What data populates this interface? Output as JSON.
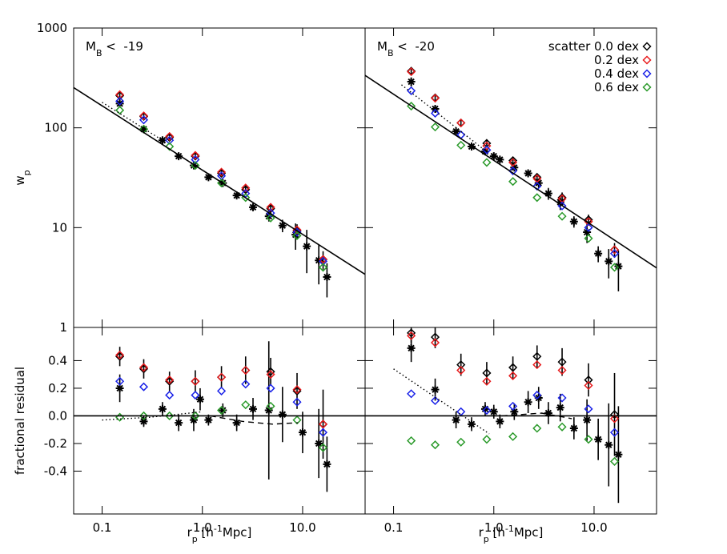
{
  "chart_data": [
    {
      "type": "scatter",
      "xlog": true,
      "ylog": true,
      "xlim": [
        0.052,
        42
      ],
      "ylim": [
        1,
        1000
      ],
      "xticks": [
        0.1,
        {
          "value": 1,
          "label": "1.0"
        },
        {
          "value": 10,
          "label": "10.0"
        }
      ],
      "xticklabels": false,
      "yticks": [
        1,
        10,
        100,
        1000
      ],
      "yticklabels": true,
      "ylabel": [
        {
          "text": "w"
        },
        {
          "text": "p",
          "sub": true
        }
      ],
      "annotation": [
        {
          "text": "M"
        },
        {
          "text": "B",
          "sub": true
        },
        {
          "text": " <  -19"
        }
      ],
      "series": [
        {
          "marker": "star",
          "color": "#000000",
          "x": [
            0.15,
            0.26,
            0.4,
            0.58,
            0.82,
            1.15,
            1.6,
            2.2,
            3.2,
            4.6,
            6.3,
            8.5,
            11,
            14.5,
            17.5
          ],
          "values": [
            175,
            97,
            75,
            52,
            42,
            32,
            28,
            21,
            16,
            13,
            10.5,
            8.5,
            6.5,
            4.7,
            3.2
          ],
          "errors": [
            15,
            6,
            4,
            3,
            2.5,
            2,
            2,
            1.5,
            1.2,
            1.5,
            1.5,
            2.5,
            3,
            2,
            1.2
          ]
        },
        {
          "name": "scatter 0.0 dex",
          "marker": "diamond",
          "color": "#000000",
          "x": [
            0.15,
            0.26,
            0.47,
            0.85,
            1.55,
            2.7,
            4.8,
            8.8,
            16
          ],
          "values": [
            210,
            130,
            80,
            52,
            35,
            24,
            15.5,
            9.3,
            4.8
          ],
          "errors": [
            12,
            8,
            5,
            4,
            3,
            2.5,
            2,
            1.5,
            1
          ]
        },
        {
          "name": "0.2 dex",
          "marker": "diamond",
          "color": "#e8191b",
          "x": [
            0.15,
            0.26,
            0.47,
            0.85,
            1.55,
            2.7,
            4.8,
            8.8,
            16
          ],
          "values": [
            215,
            132,
            82,
            53,
            36,
            25,
            16,
            9.5,
            4.8
          ]
        },
        {
          "name": "0.4 dex",
          "marker": "diamond",
          "color": "#1a22e8",
          "x": [
            0.15,
            0.26,
            0.47,
            0.85,
            1.55,
            2.7,
            4.8,
            8.8,
            16
          ],
          "values": [
            185,
            120,
            75,
            48,
            33,
            22,
            14,
            9,
            4.6
          ]
        },
        {
          "name": "0.6 dex",
          "marker": "diamond",
          "color": "#2a9a2a",
          "x": [
            0.15,
            0.26,
            0.47,
            0.85,
            1.55,
            2.7,
            4.8,
            8.8,
            16
          ],
          "values": [
            150,
            97,
            65,
            42,
            28,
            20,
            12.5,
            8.3,
            4.0
          ]
        },
        {
          "line": "solid",
          "color": "#000000",
          "x": [
            0.052,
            42
          ],
          "values": [
            253,
            3.4
          ]
        },
        {
          "line": "dotted",
          "color": "#000000",
          "x": [
            0.1,
            0.4
          ],
          "values": [
            180,
            75
          ]
        }
      ]
    },
    {
      "type": "scatter",
      "xlog": true,
      "ylog": true,
      "xlim": [
        0.052,
        42
      ],
      "ylim": [
        1,
        1000
      ],
      "xticks": [
        0.1,
        {
          "value": 1,
          "label": "1.0"
        },
        {
          "value": 10,
          "label": "10.0"
        }
      ],
      "xticklabels": false,
      "yticks": [
        1,
        10,
        100,
        1000
      ],
      "yticklabels": false,
      "annotation": [
        {
          "text": "M"
        },
        {
          "text": "B",
          "sub": true
        },
        {
          "text": " <  -20"
        }
      ],
      "legend": "upper right",
      "series": [
        {
          "marker": "star",
          "color": "#000000",
          "x": [
            0.15,
            0.26,
            0.42,
            0.6,
            0.82,
            1.0,
            1.15,
            1.6,
            2.2,
            2.8,
            3.5,
            4.6,
            6.3,
            8.5,
            11,
            14,
            17.5
          ],
          "values": [
            290,
            155,
            92,
            65,
            58,
            52,
            48,
            40,
            35,
            28,
            22,
            18,
            11.5,
            9,
            5.5,
            4.6,
            4.1
          ],
          "errors": [
            30,
            12,
            5,
            3,
            3,
            3,
            3,
            3,
            3,
            3,
            3,
            3,
            1.5,
            2,
            1,
            1.5,
            1.8
          ]
        },
        {
          "name": "scatter 0.0 dex",
          "marker": "diamond",
          "color": "#000000",
          "x": [
            0.15,
            0.26,
            0.47,
            0.85,
            1.55,
            2.7,
            4.8,
            8.8,
            16
          ],
          "values": [
            370,
            200,
            112,
            70,
            47,
            32,
            20,
            12,
            6
          ],
          "errors": [
            25,
            15,
            8,
            6,
            4,
            3,
            2.5,
            1.5,
            1
          ]
        },
        {
          "name": "0.2 dex",
          "marker": "diamond",
          "color": "#e8191b",
          "x": [
            0.15,
            0.26,
            0.47,
            0.85,
            1.55,
            2.7,
            4.8,
            8.8,
            16
          ],
          "values": [
            365,
            198,
            112,
            66,
            45,
            31,
            19.5,
            11.5,
            6
          ]
        },
        {
          "name": "0.4 dex",
          "marker": "diamond",
          "color": "#1a22e8",
          "x": [
            0.15,
            0.26,
            0.47,
            0.85,
            1.55,
            2.7,
            4.8,
            8.8,
            16
          ],
          "values": [
            235,
            140,
            85,
            60,
            37,
            26,
            16.5,
            10,
            5.5
          ]
        },
        {
          "name": "0.6 dex",
          "marker": "diamond",
          "color": "#2a9a2a",
          "x": [
            0.15,
            0.26,
            0.47,
            0.85,
            1.55,
            2.7,
            4.8,
            8.8,
            16
          ],
          "values": [
            165,
            102,
            67,
            45,
            29,
            20,
            13,
            7.8,
            4.0
          ]
        },
        {
          "line": "solid",
          "color": "#000000",
          "x": [
            0.052,
            42
          ],
          "values": [
            335,
            3.95
          ]
        },
        {
          "line": "dotted",
          "color": "#000000",
          "x": [
            0.12,
            0.9
          ],
          "values": [
            270,
            55
          ]
        }
      ]
    },
    {
      "type": "scatter",
      "xlog": true,
      "ylog": false,
      "xlim": [
        0.052,
        42
      ],
      "ylim": [
        -0.71,
        0.64
      ],
      "xticks": [
        0.1,
        {
          "value": 1,
          "label": "1.0"
        },
        {
          "value": 10,
          "label": "10.0"
        }
      ],
      "xticklabels": true,
      "yticks": [
        -0.4,
        -0.2,
        {
          "value": 0,
          "label": "0.0"
        },
        0.2,
        0.4
      ],
      "yticklabels": true,
      "ylabel": [
        {
          "text": "fractional residual"
        }
      ],
      "xlabel": [
        {
          "text": "r"
        },
        {
          "text": "p",
          "sub": true
        },
        {
          "text": " [h"
        },
        {
          "text": "-1",
          "sup": true
        },
        {
          "text": "Mpc]"
        }
      ],
      "series": [
        {
          "marker": "star",
          "color": "#000000",
          "x": [
            0.15,
            0.26,
            0.4,
            0.58,
            0.82,
            0.95,
            1.15,
            1.6,
            2.2,
            3.2,
            4.6,
            6.3,
            10,
            14.5,
            17.5
          ],
          "values": [
            0.2,
            -0.04,
            0.05,
            -0.05,
            -0.03,
            0.12,
            -0.03,
            0.04,
            -0.05,
            0.05,
            0.04,
            0.01,
            -0.12,
            -0.2,
            -0.35
          ],
          "errors": [
            0.1,
            0.04,
            0.05,
            0.06,
            0.08,
            0.08,
            0.04,
            0.05,
            0.06,
            0.08,
            0.5,
            0.2,
            0.15,
            0.25,
            0.2
          ]
        },
        {
          "name": "scatter 0.0 dex",
          "marker": "diamond",
          "color": "#000000",
          "x": [
            0.15,
            0.26,
            0.47,
            0.85,
            1.55,
            2.7,
            4.8,
            8.8,
            16
          ],
          "values": [
            0.43,
            0.34,
            0.25,
            0.25,
            0.28,
            0.33,
            0.32,
            0.18,
            -0.06
          ],
          "errors": [
            0.07,
            0.07,
            0.07,
            0.08,
            0.08,
            0.1,
            0.1,
            0.13,
            0.25
          ]
        },
        {
          "name": "0.2 dex",
          "marker": "diamond",
          "color": "#e8191b",
          "x": [
            0.15,
            0.26,
            0.47,
            0.85,
            1.55,
            2.7,
            4.8,
            8.8,
            16
          ],
          "values": [
            0.44,
            0.35,
            0.26,
            0.25,
            0.28,
            0.33,
            0.3,
            0.19,
            -0.06
          ]
        },
        {
          "name": "0.4 dex",
          "marker": "diamond",
          "color": "#1a22e8",
          "x": [
            0.15,
            0.26,
            0.47,
            0.85,
            1.55,
            2.7,
            4.8,
            8.8,
            16
          ],
          "values": [
            0.25,
            0.21,
            0.15,
            0.15,
            0.18,
            0.23,
            0.2,
            0.1,
            -0.12
          ]
        },
        {
          "name": "0.6 dex",
          "marker": "diamond",
          "color": "#2a9a2a",
          "x": [
            0.15,
            0.26,
            0.47,
            0.85,
            1.55,
            2.7,
            4.8,
            8.8,
            16
          ],
          "values": [
            -0.01,
            0.0,
            0.0,
            0.0,
            0.04,
            0.08,
            0.07,
            -0.03,
            -0.23
          ]
        },
        {
          "line": "solid",
          "color": "#000000",
          "x": [
            0.052,
            42
          ],
          "values": [
            0,
            0
          ]
        },
        {
          "line": "dotted",
          "color": "#000000",
          "x": [
            0.1,
            0.3,
            1.0
          ],
          "values": [
            -0.03,
            -0.01,
            0.03
          ]
        },
        {
          "line": "dashed",
          "color": "#000000",
          "x": [
            1.2,
            2.5,
            5,
            9
          ],
          "values": [
            0.0,
            -0.04,
            -0.06,
            -0.05
          ]
        }
      ]
    },
    {
      "type": "scatter",
      "xlog": true,
      "ylog": false,
      "xlim": [
        0.052,
        42
      ],
      "ylim": [
        -0.71,
        0.64
      ],
      "xticks": [
        0.1,
        {
          "value": 1,
          "label": "1.0"
        },
        {
          "value": 10,
          "label": "10.0"
        }
      ],
      "xticklabels": true,
      "yticks": [
        -0.4,
        -0.2,
        {
          "value": 0,
          "label": "0.0"
        },
        0.2,
        0.4
      ],
      "yticklabels": false,
      "xlabel": [
        {
          "text": "r"
        },
        {
          "text": "p",
          "sub": true
        },
        {
          "text": " [h"
        },
        {
          "text": "-1",
          "sup": true
        },
        {
          "text": "Mpc]"
        }
      ],
      "series": [
        {
          "marker": "star",
          "color": "#000000",
          "x": [
            0.15,
            0.26,
            0.42,
            0.6,
            0.82,
            1.0,
            1.15,
            1.6,
            2.2,
            2.8,
            3.5,
            4.6,
            6.3,
            8.5,
            11,
            14,
            17.5
          ],
          "values": [
            0.49,
            0.19,
            -0.03,
            -0.06,
            0.05,
            0.03,
            -0.04,
            0.03,
            0.1,
            0.13,
            0.02,
            0.06,
            -0.09,
            -0.03,
            -0.17,
            -0.21,
            -0.28
          ],
          "errors": [
            0.1,
            0.08,
            0.06,
            0.05,
            0.05,
            0.05,
            0.05,
            0.06,
            0.08,
            0.08,
            0.08,
            0.1,
            0.08,
            0.15,
            0.15,
            0.3,
            0.35
          ]
        },
        {
          "name": "scatter 0.0 dex",
          "marker": "diamond",
          "color": "#000000",
          "x": [
            0.15,
            0.26,
            0.47,
            0.85,
            1.55,
            2.7,
            4.8,
            8.8,
            16
          ],
          "values": [
            0.6,
            0.57,
            0.37,
            0.31,
            0.35,
            0.43,
            0.39,
            0.26,
            0.01
          ],
          "errors": [
            0.07,
            0.08,
            0.08,
            0.08,
            0.08,
            0.08,
            0.1,
            0.12,
            0.3
          ]
        },
        {
          "name": "0.2 dex",
          "marker": "diamond",
          "color": "#e8191b",
          "x": [
            0.15,
            0.26,
            0.47,
            0.85,
            1.55,
            2.7,
            4.8,
            8.8,
            16
          ],
          "values": [
            0.58,
            0.53,
            0.33,
            0.25,
            0.29,
            0.37,
            0.33,
            0.22,
            -0.02
          ]
        },
        {
          "name": "0.4 dex",
          "marker": "diamond",
          "color": "#1a22e8",
          "x": [
            0.15,
            0.26,
            0.47,
            0.85,
            1.55,
            2.7,
            4.8,
            8.8,
            16
          ],
          "values": [
            0.16,
            0.11,
            0.03,
            0.04,
            0.07,
            0.15,
            0.13,
            0.05,
            -0.12
          ]
        },
        {
          "name": "0.6 dex",
          "marker": "diamond",
          "color": "#2a9a2a",
          "x": [
            0.15,
            0.26,
            0.47,
            0.85,
            1.55,
            2.7,
            4.8,
            8.8,
            16
          ],
          "values": [
            -0.18,
            -0.21,
            -0.19,
            -0.17,
            -0.15,
            -0.09,
            -0.08,
            -0.17,
            -0.33
          ]
        },
        {
          "line": "solid",
          "color": "#000000",
          "x": [
            0.052,
            42
          ],
          "values": [
            0,
            0
          ]
        },
        {
          "line": "dotted",
          "color": "#000000",
          "x": [
            0.1,
            0.9
          ],
          "values": [
            0.34,
            -0.13
          ]
        },
        {
          "line": "dashed",
          "color": "#000000",
          "x": [
            1.2,
            3,
            6
          ],
          "values": [
            0.0,
            0.02,
            -0.02
          ]
        }
      ]
    }
  ]
}
